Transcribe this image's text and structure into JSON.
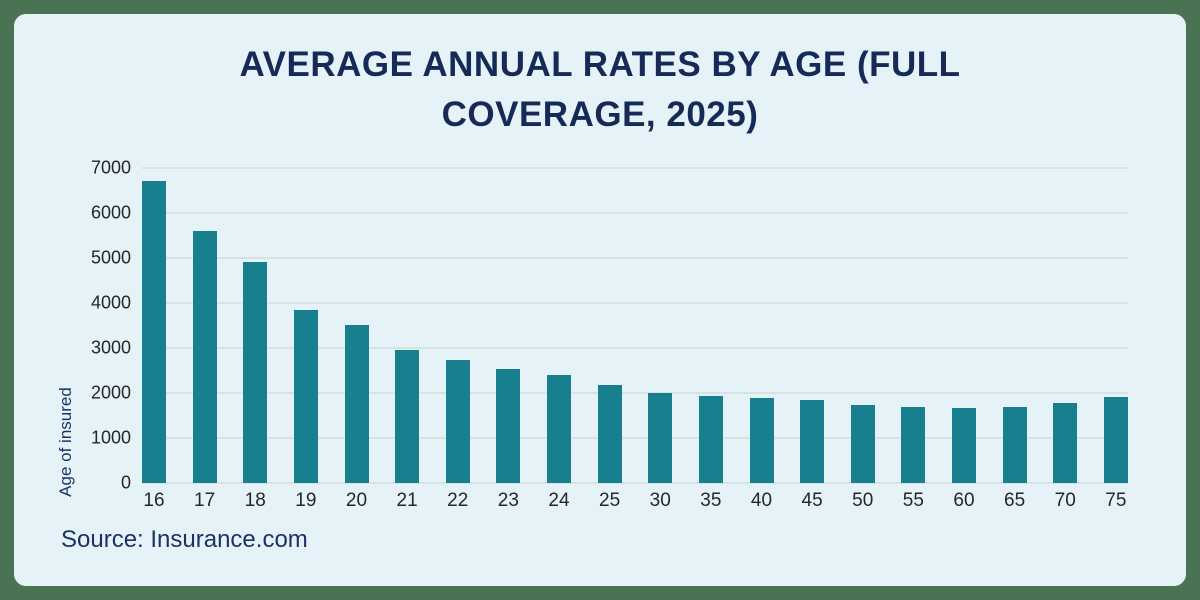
{
  "frame": {
    "border_color": "#4A7353",
    "card_bg": "#E5F3F8"
  },
  "title": "AVERAGE ANNUAL RATES BY AGE (FULL COVERAGE, 2025)",
  "source": "Source: Insurance.com",
  "chart_data": {
    "type": "bar",
    "title": "AVERAGE ANNUAL RATES BY AGE (FULL COVERAGE, 2025)",
    "categories": [
      "16",
      "17",
      "18",
      "19",
      "20",
      "21",
      "22",
      "23",
      "24",
      "25",
      "30",
      "35",
      "40",
      "45",
      "50",
      "55",
      "60",
      "65",
      "70",
      "75"
    ],
    "values": [
      6720,
      5600,
      4910,
      3850,
      3520,
      2950,
      2730,
      2540,
      2400,
      2180,
      1990,
      1930,
      1880,
      1850,
      1740,
      1680,
      1670,
      1690,
      1780,
      1920
    ],
    "xlabel": "",
    "ylabel": "Age of insured",
    "ylim": [
      0,
      7000
    ],
    "ytick_step": 1000,
    "yticks": [
      0,
      1000,
      2000,
      3000,
      4000,
      5000,
      6000,
      7000
    ],
    "grid": true,
    "legend_position": "none",
    "bar_color": "#177F8D",
    "gridline_color": "#D6E3E2",
    "tick_label_color": "#262626",
    "axis_title_color": "#1B3363",
    "title_color": "#152A56"
  }
}
